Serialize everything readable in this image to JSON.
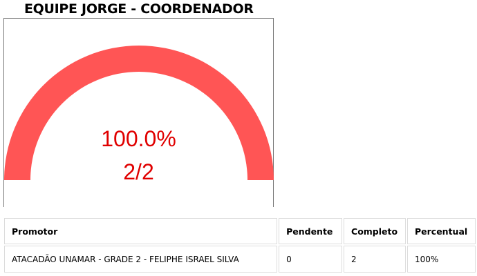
{
  "header": {
    "title": "EQUIPE JORGE - COORDENADOR"
  },
  "gauge": {
    "percent_label": "100.0%",
    "fraction_label": "2/2",
    "completed": 2,
    "total": 2,
    "fill_fraction": 1.0,
    "arc_color": "#ff5555",
    "text_color": "#e00000"
  },
  "table": {
    "columns": [
      "Promotor",
      "Pendente",
      "Completo",
      "Percentual"
    ],
    "rows": [
      [
        "ATACADÃO UNAMAR - GRADE 2 - FELIPHE ISRAEL SILVA",
        "0",
        "2",
        "100%"
      ]
    ]
  }
}
